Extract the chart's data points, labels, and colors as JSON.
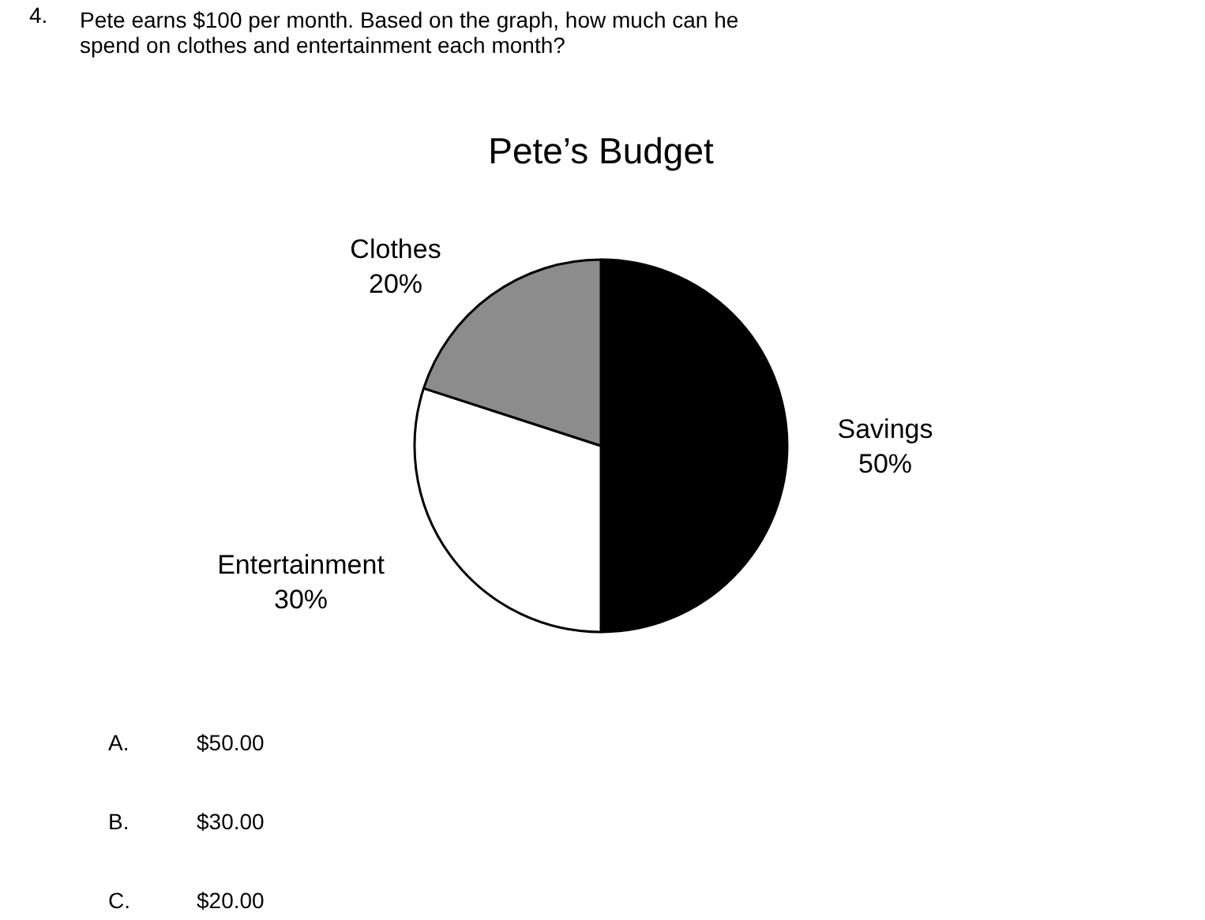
{
  "chart_data": {
    "type": "pie",
    "title": "Pete’s Budget",
    "categories": [
      "Savings",
      "Entertainment",
      "Clothes"
    ],
    "values": [
      50,
      30,
      20
    ],
    "colors": [
      "#000000",
      "#ffffff",
      "#8c8c8c"
    ],
    "value_labels": [
      "50%",
      "30%",
      "20%"
    ],
    "annotations": [
      "4.",
      "Pete earns $100 per month. Based on the graph, how much can he",
      "spend on clothes and entertainment each month?",
      "A.",
      "$50.00",
      "B.",
      "$30.00",
      "C.",
      "$20.00"
    ]
  }
}
